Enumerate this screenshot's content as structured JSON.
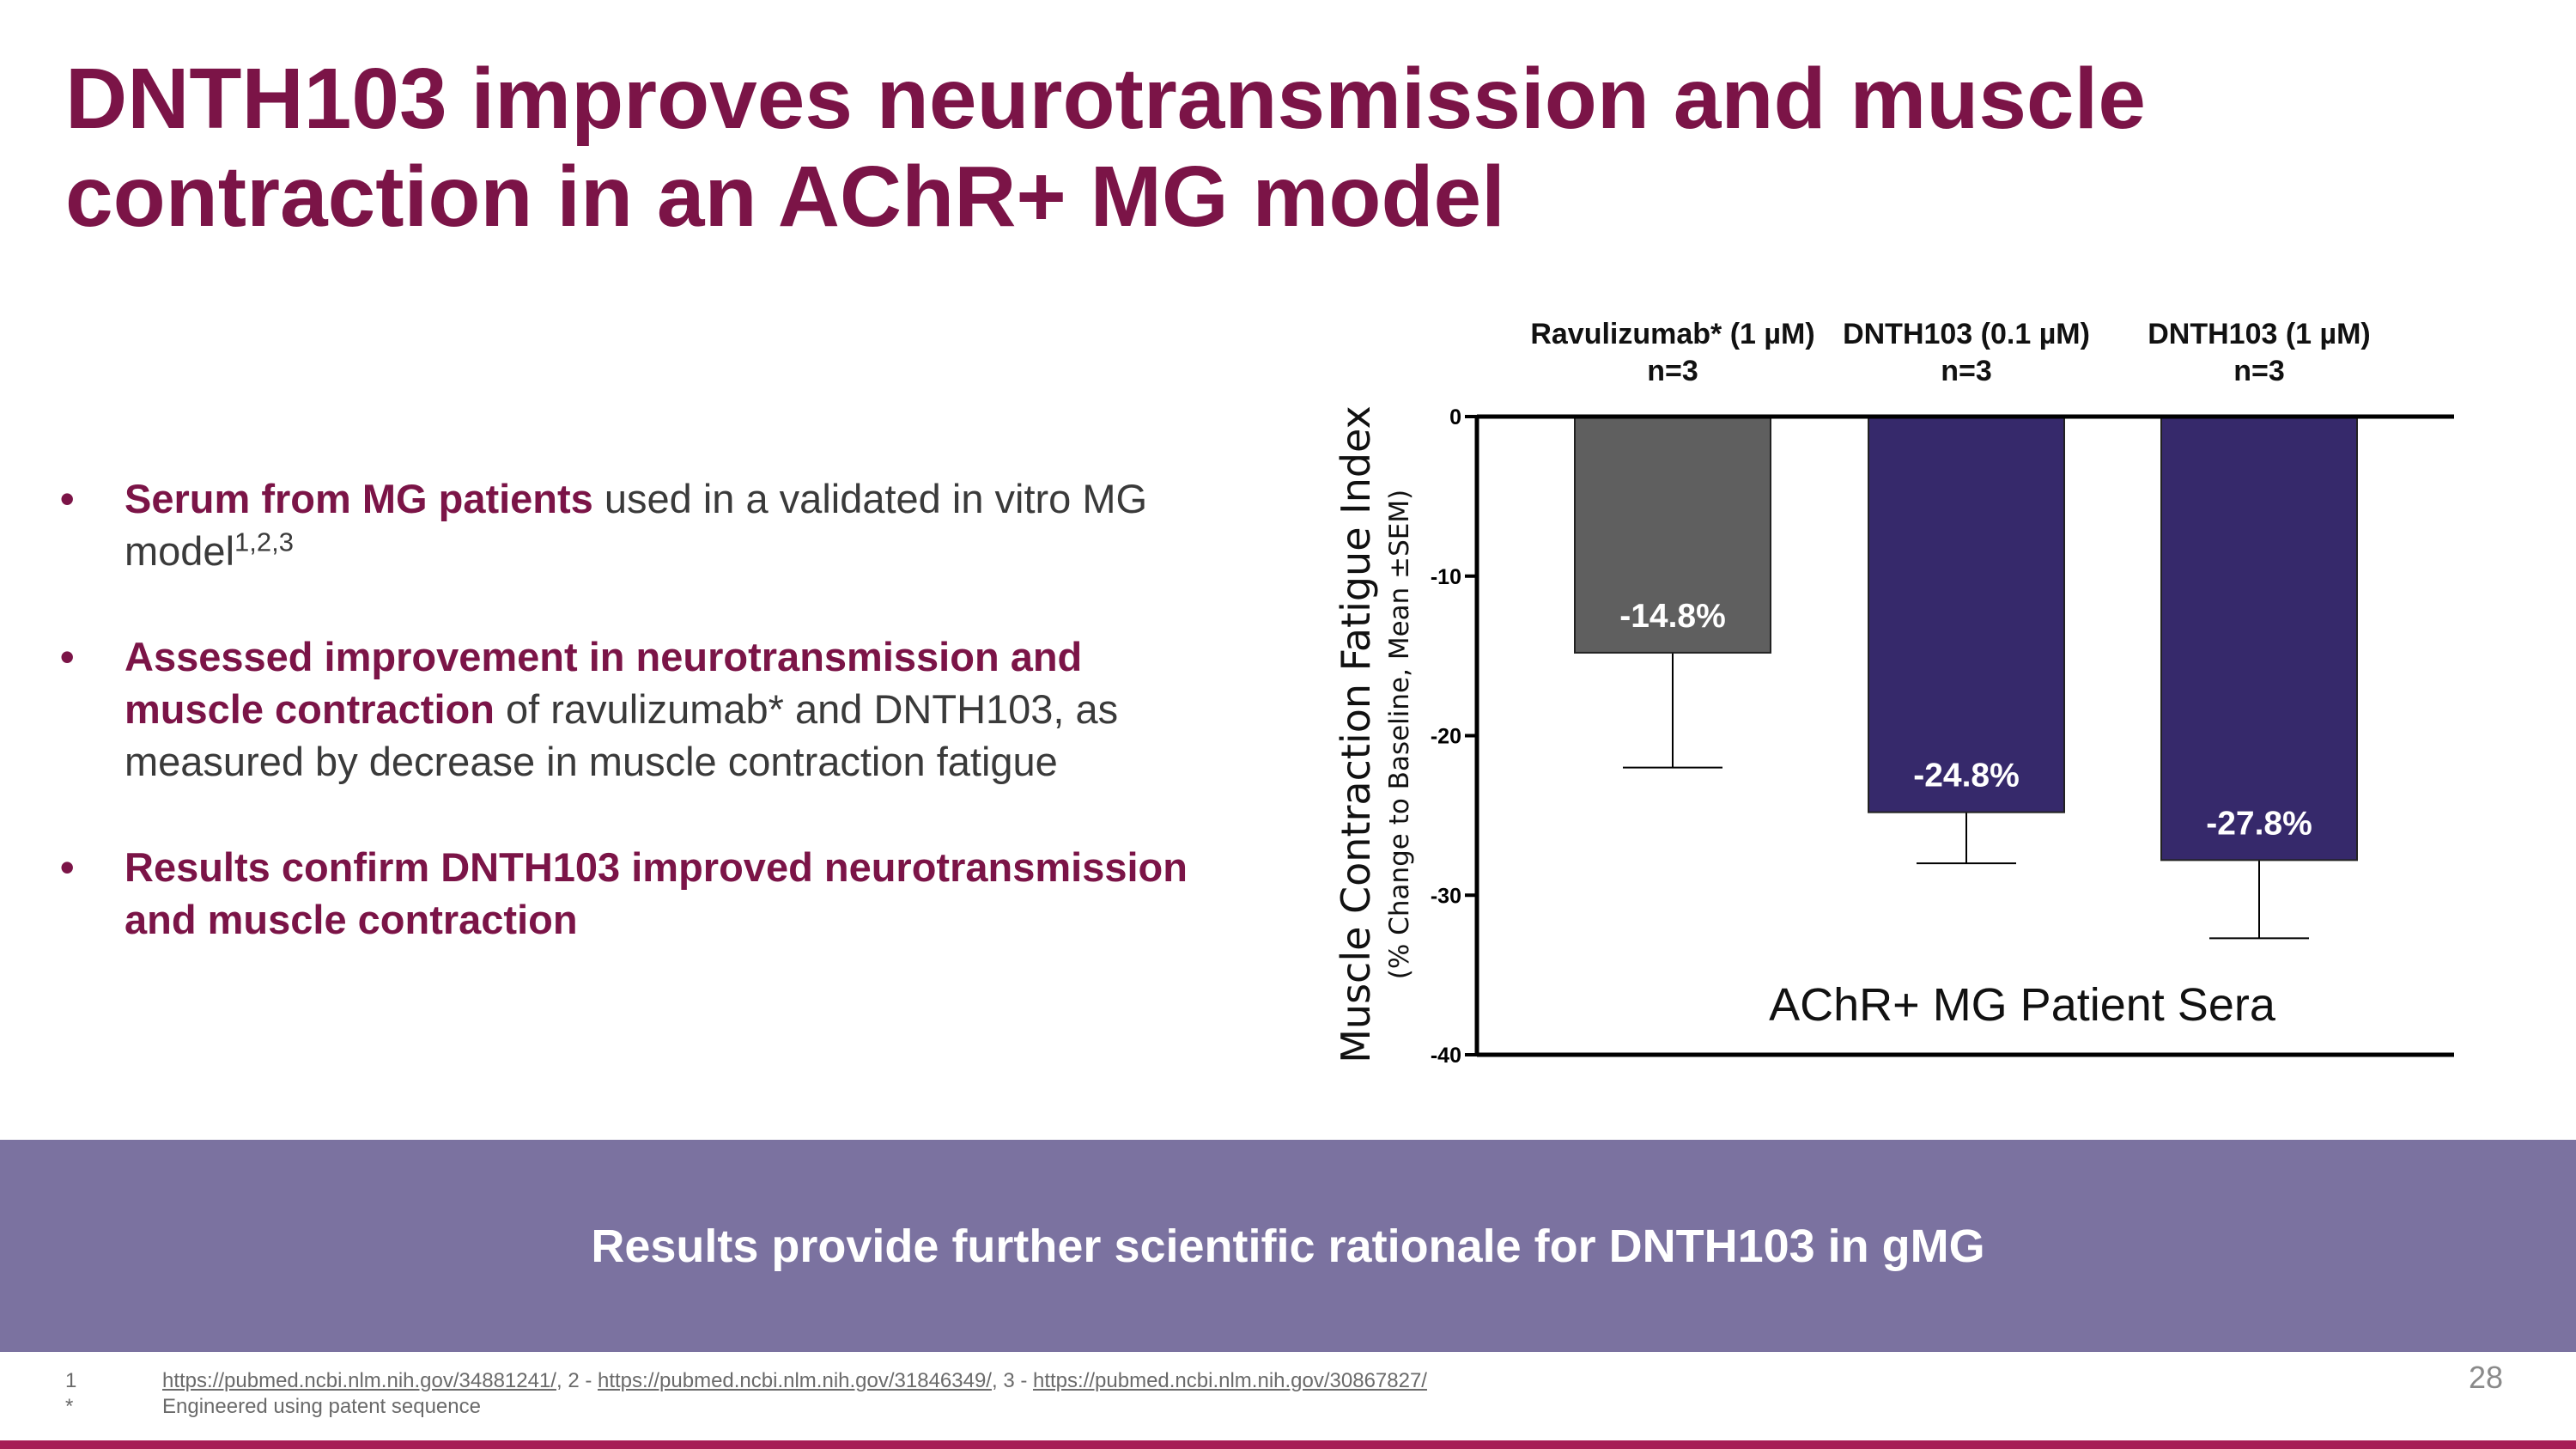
{
  "slide": {
    "title_line1": "DNTH103 improves neurotransmission and muscle",
    "title_line2": "contraction in an AChR+ MG model",
    "page_number": "28"
  },
  "bullets": [
    {
      "highlight": "Serum from MG patients",
      "rest": " used in a validated in vitro MG model",
      "sup": "1,2,3"
    },
    {
      "highlight": "Assessed improvement in neurotransmission and muscle contraction",
      "rest": " of ravulizumab* and DNTH103, as measured by decrease in muscle contraction fatigue",
      "sup": ""
    },
    {
      "highlight": "Results confirm DNTH103 improved neurotransmission and muscle contraction",
      "rest": "",
      "sup": ""
    }
  ],
  "banner": {
    "text": "Results provide further scientific rationale for DNTH103 in gMG"
  },
  "footnotes": [
    {
      "marker": "1",
      "links": [
        "https://pubmed.ncbi.nlm.nih.gov/34881241/",
        "https://pubmed.ncbi.nlm.nih.gov/31846349/",
        "https://pubmed.ncbi.nlm.nih.gov/30867827/"
      ],
      "separators": [
        ", 2 - ",
        ", 3 - ",
        ""
      ]
    },
    {
      "marker": "*",
      "text": "Engineered using patent sequence"
    }
  ],
  "chart_data": {
    "type": "bar",
    "categories": [
      {
        "line1": "Ravulizumab* (1 µM)",
        "line2": "n=3"
      },
      {
        "line1": "DNTH103 (0.1 µM)",
        "line2": "n=3"
      },
      {
        "line1": "DNTH103 (1 µM)",
        "line2": "n=3"
      }
    ],
    "values": [
      -14.8,
      -24.8,
      -27.8
    ],
    "error_low": [
      -22.0,
      -28.0,
      -32.7
    ],
    "value_labels": [
      "-14.8%",
      "-24.8%",
      "-27.8%"
    ],
    "bar_colors": [
      "#5f5f5f",
      "#36296b",
      "#36296b"
    ],
    "ylabel": "Muscle Contraction Fatigue Index",
    "ylabel_sub": "(% Change to Baseline, Mean ±SEM)",
    "yticks": [
      0,
      -10,
      -20,
      -30,
      -40
    ],
    "ylim": [
      -40,
      0
    ],
    "annotation": "AChR+ MG Patient Sera"
  }
}
